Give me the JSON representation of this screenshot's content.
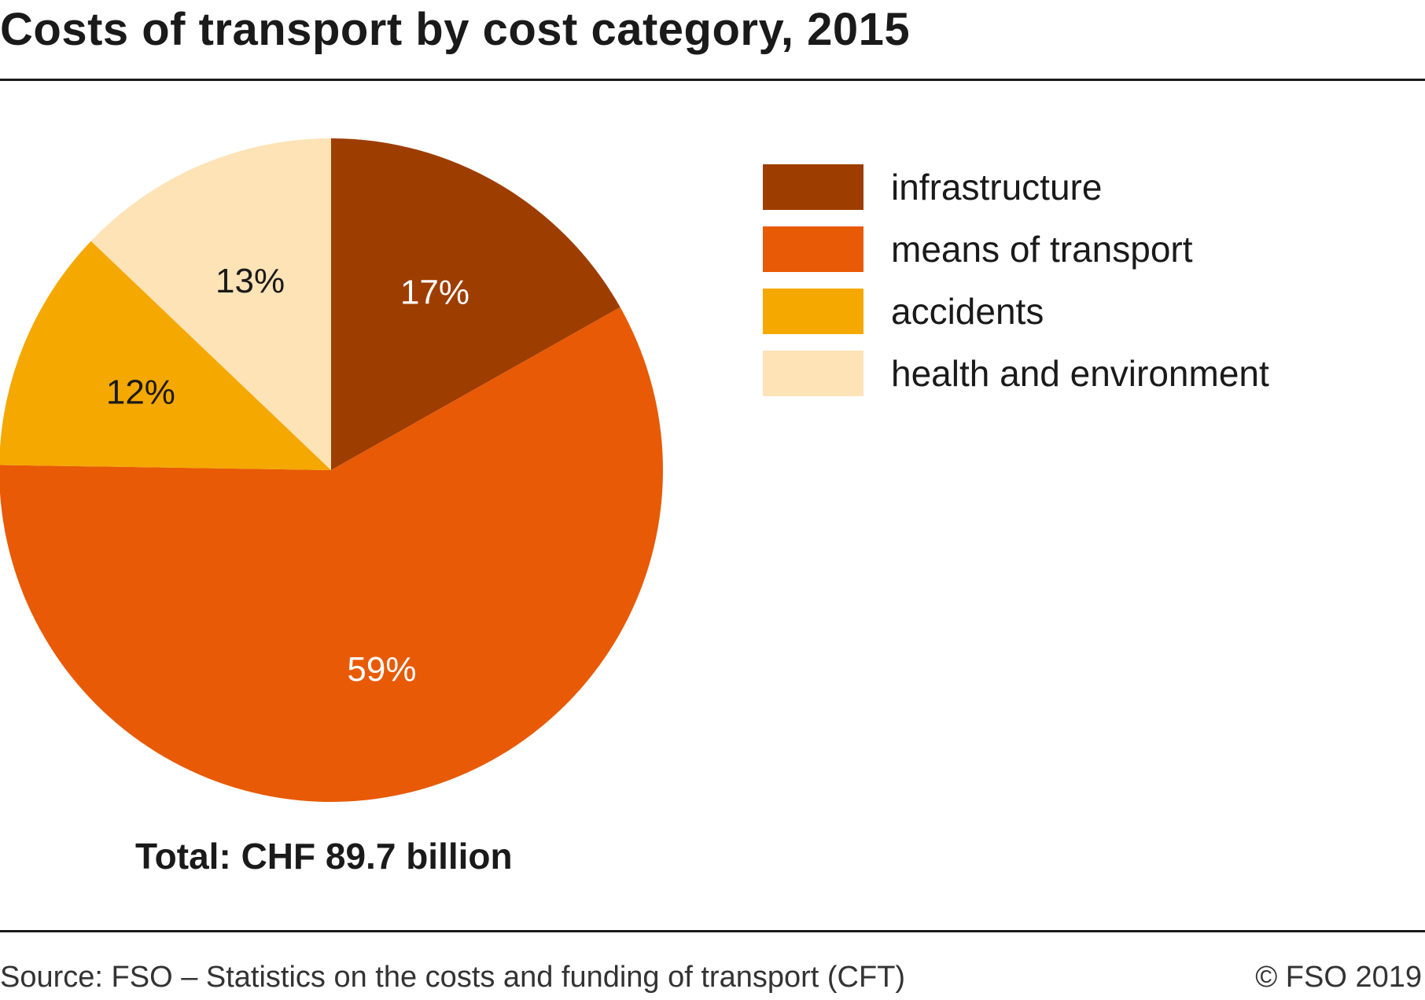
{
  "header": {
    "title": "Costs of transport by cost category, 2015"
  },
  "chart_data": {
    "type": "pie",
    "title": "Costs of transport by cost category, 2015",
    "categories": [
      "infrastructure",
      "means of transport",
      "accidents",
      "health and environment"
    ],
    "values": [
      17,
      59,
      12,
      13
    ],
    "value_labels": [
      "17%",
      "59%",
      "12%",
      "13%"
    ],
    "unit": "%",
    "colors": [
      "#9e3d00",
      "#e85a05",
      "#f5a800",
      "#fde3b6"
    ],
    "label_colors": [
      "#ffffff",
      "#ffffff",
      "#1a1a1a",
      "#1a1a1a"
    ],
    "start_angle_deg": 0,
    "direction": "clockwise",
    "legend_position": "right",
    "total_label": "Total: CHF 89.7 billion"
  },
  "legend": {
    "items": [
      {
        "label": "infrastructure",
        "color": "#9e3d00"
      },
      {
        "label": "means of transport",
        "color": "#e85a05"
      },
      {
        "label": "accidents",
        "color": "#f5a800"
      },
      {
        "label": "health and environment",
        "color": "#fde3b6"
      }
    ]
  },
  "footer": {
    "source": "Source: FSO – Statistics on the costs and funding of transport (CFT)",
    "copyright": "© FSO 2019"
  }
}
